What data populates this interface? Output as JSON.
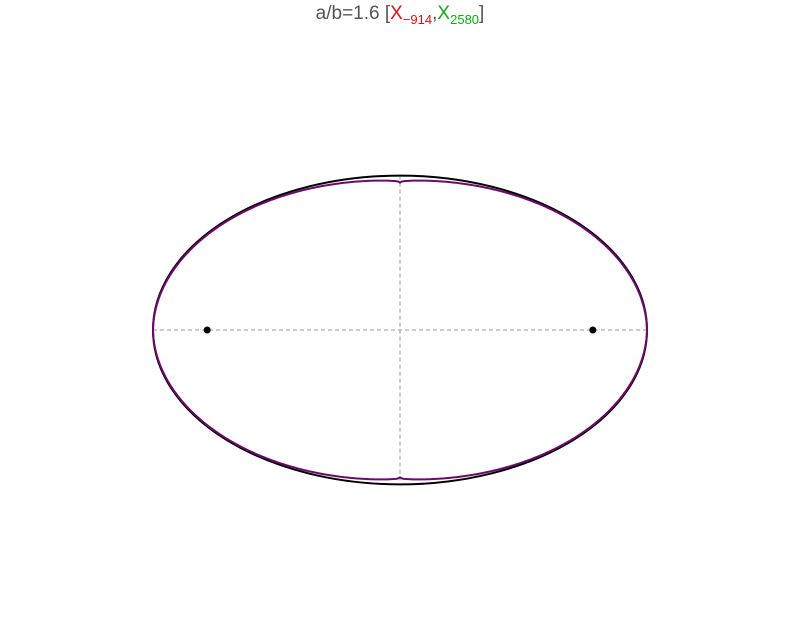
{
  "title": {
    "prefix": "a/b=1.6 [",
    "first_letter": "X",
    "first_index": "−914",
    "separator": ",",
    "second_letter": "X",
    "second_index": "2580",
    "suffix": "]"
  },
  "diagram": {
    "ellipse_ratio": 1.6,
    "curve_bulge": 0.045,
    "colors": {
      "ellipse": "#000000",
      "curve": "#6a0a6a",
      "axes": "#999999",
      "foci": "#000000",
      "title_text": "#555555",
      "first_label": "#dd1111",
      "second_label": "#11aa11"
    }
  }
}
